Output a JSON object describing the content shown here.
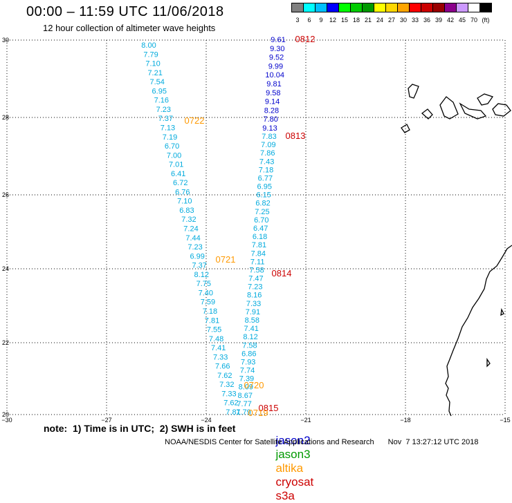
{
  "header": {
    "title": "00:00 – 11:59 UTC 11/06/2018",
    "subtitle": "12 hour collection of altimeter wave heights"
  },
  "colorbar": {
    "colors": [
      "#808080",
      "#00ffff",
      "#00bfff",
      "#0000ff",
      "#00ff00",
      "#00cc00",
      "#009900",
      "#ffff00",
      "#ffd700",
      "#ffa500",
      "#ff0000",
      "#cc0000",
      "#990000",
      "#8b008b",
      "#cc99ff",
      "#ffffff",
      "#000000"
    ],
    "labels": [
      "3",
      "6",
      "9",
      "12",
      "15",
      "18",
      "21",
      "24",
      "27",
      "30",
      "33",
      "36",
      "39",
      "42",
      "45",
      "70",
      "(ft)"
    ]
  },
  "axes": {
    "lon_ticks": [
      "−30",
      "−27",
      "−24",
      "−21",
      "−18",
      "−15"
    ],
    "lat_ticks": [
      "30",
      "28",
      "26",
      "24",
      "22",
      "20"
    ]
  },
  "colors": {
    "jason2": "#0000cc",
    "jason3": "#009900",
    "altika": "#ff9900",
    "cryosat": "#cc0000",
    "s3a": "#00aadd"
  },
  "tracks": {
    "s3a_left": [
      "8.00",
      "7.79",
      "7.10",
      "7.21",
      "7.54",
      "6.95",
      "7.16",
      "7.23",
      "7.37",
      "7.13",
      "7.19",
      "6.70",
      "7.00",
      "7.01",
      "6.41",
      "6.72",
      "6.76",
      "7.10",
      "6.83",
      "7.32",
      "7.24",
      "7.44",
      "7.23",
      "6.99",
      "7.37",
      "8.12",
      "7.75",
      "7.40",
      "7.59",
      "7.18",
      "7.81",
      "7.55",
      "7.48",
      "7.41",
      "7.33",
      "7.66",
      "7.62",
      "7.32",
      "7.33",
      "7.62",
      "7.81"
    ],
    "jason2_right": [
      "9.61",
      "9.30",
      "9.52",
      "9.99",
      "10.04",
      "9.81",
      "9.58",
      "9.14",
      "8.28",
      "7.80",
      "9.13"
    ],
    "s3a_right": [
      "7.83",
      "7.09",
      "7.86",
      "7.43",
      "7.18",
      "6.77",
      "6.95",
      "6.15",
      "6.82",
      "7.25",
      "6.70",
      "6.47",
      "6.18",
      "7.81",
      "7.84",
      "7.11",
      "7.58",
      "7.47",
      "7.23",
      "8.16",
      "7.33",
      "7.91",
      "8.58",
      "7.41",
      "8.12",
      "7.58",
      "6.86",
      "7.93",
      "7.74",
      "7.39",
      "8.09",
      "8.67",
      "7.77",
      "7.79"
    ]
  },
  "time_labels": [
    {
      "text": "0812",
      "sat": "cryosat"
    },
    {
      "text": "0722",
      "sat": "altika"
    },
    {
      "text": "0813",
      "sat": "cryosat"
    },
    {
      "text": "0721",
      "sat": "altika"
    },
    {
      "text": "0814",
      "sat": "cryosat"
    },
    {
      "text": "0720",
      "sat": "altika"
    },
    {
      "text": "0815",
      "sat": "cryosat"
    },
    {
      "text": "0719",
      "sat": "altika"
    }
  ],
  "footer": {
    "note": "note:  1) Time is in UTC;  2) SWH is in feet",
    "legend": {
      "jason2": "jason2",
      "jason3": "jason3",
      "altika": "altika",
      "cryosat": "cryosat",
      "s3a": "s3a"
    },
    "credit": "NOAA/NESDIS Center for Satellite Applications and Research",
    "timestamp": "Nov  7 13:27:12 UTC 2018"
  }
}
